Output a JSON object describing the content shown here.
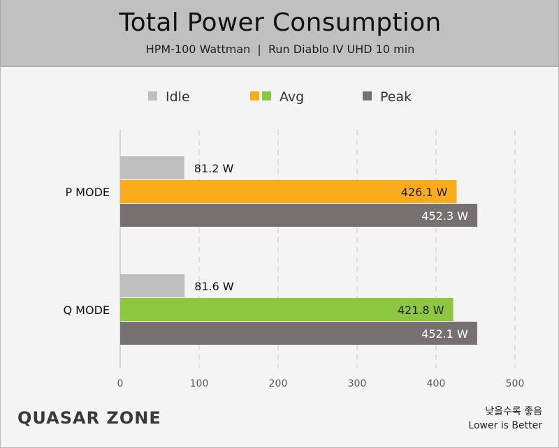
{
  "header": {
    "title": "Total Power Consumption",
    "subtitle": "HPM-100 Wattman  |  Run Diablo IV UHD 10 min"
  },
  "footer": {
    "logo_text": "QUASAR ZONE",
    "note_kr": "낮을수록 좋음",
    "note_en": "Lower is Better"
  },
  "colors": {
    "idle": "#c0bfbf",
    "avg_p": "#fbac1c",
    "avg_q": "#8dc63f",
    "peak": "#767170",
    "grid": "#c8c8c8"
  },
  "chart_data": {
    "type": "bar",
    "orientation": "horizontal",
    "title": "Total Power Consumption",
    "subtitle": "HPM-100 Wattman  |  Run Diablo IV UHD 10 min",
    "categories": [
      "P MODE",
      "Q MODE"
    ],
    "series": [
      {
        "name": "Idle",
        "values": [
          81.2,
          81.6
        ],
        "labels": [
          "81.2 W",
          "81.6 W"
        ]
      },
      {
        "name": "Avg",
        "values": [
          426.1,
          421.8
        ],
        "labels": [
          "426.1 W",
          "421.8 W"
        ]
      },
      {
        "name": "Peak",
        "values": [
          452.3,
          452.1
        ],
        "labels": [
          "452.3 W",
          "452.1 W"
        ]
      }
    ],
    "xlim": [
      0,
      500
    ],
    "xticks": [
      0,
      100,
      200,
      300,
      400,
      500
    ],
    "grid": true,
    "legend": "top-center"
  }
}
